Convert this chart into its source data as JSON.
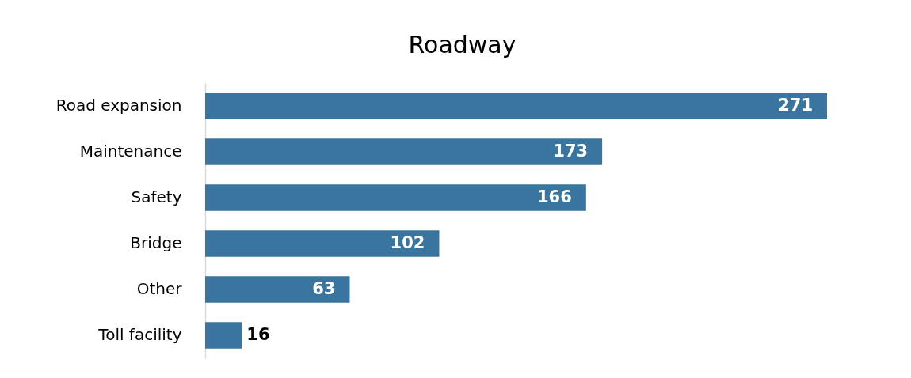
{
  "chart_data": {
    "type": "bar",
    "title": "Roadway",
    "orientation": "horizontal",
    "categories": [
      "Road expansion",
      "Maintenance",
      "Safety",
      "Bridge",
      "Other",
      "Toll facility"
    ],
    "values": [
      271,
      173,
      166,
      102,
      63,
      16
    ],
    "color": "#3a75a0",
    "data_labels": true
  }
}
